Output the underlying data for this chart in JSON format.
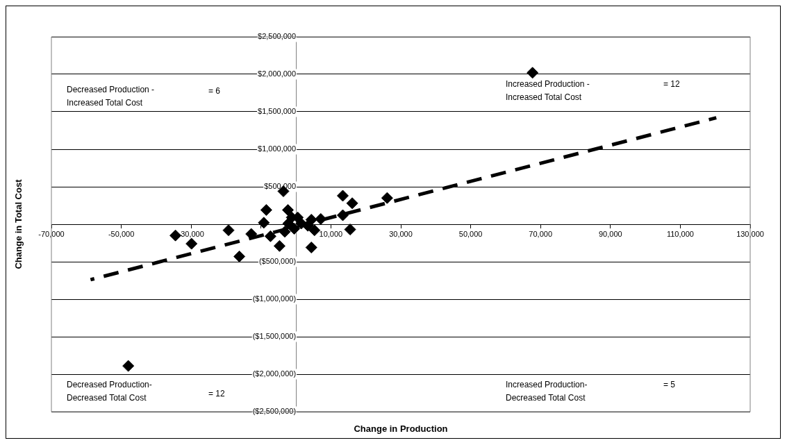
{
  "chart_data": {
    "type": "scatter",
    "xlabel": "Change in Production",
    "ylabel": "Change in Total Cost",
    "series": [
      {
        "color": "#000000",
        "marker": "diamond",
        "x": [
          -48000,
          -34500,
          -29900,
          -19300,
          -16200,
          -12800,
          -8500,
          -9200,
          -7300,
          -4700,
          -3600,
          -2300,
          -1200,
          500,
          -500,
          -3200,
          -2200,
          1500,
          3400,
          4400,
          5300,
          4400,
          7100,
          13400,
          13400,
          16100,
          15500,
          26100,
          67700
        ],
        "values": [
          -1890000,
          -150000,
          -260000,
          -80000,
          -430000,
          -130000,
          190000,
          20000,
          -160000,
          -290000,
          440000,
          190000,
          90000,
          90000,
          -60000,
          -100000,
          10000,
          10000,
          -20000,
          60000,
          -80000,
          -310000,
          70000,
          120000,
          380000,
          280000,
          -70000,
          350000,
          2020000
        ]
      },
      {
        "type": "line",
        "color": "#000000",
        "marker": "none",
        "line_style": "dashed",
        "x": [
          -58800,
          120300
        ],
        "values": [
          -740000,
          1420000
        ]
      }
    ],
    "xlim": [
      -70000,
      130000
    ],
    "xticks": [
      {
        "value": -70000,
        "label": "-70,000"
      },
      {
        "value": -50000,
        "label": "-50,000"
      },
      {
        "value": -30000,
        "label": "-30,000"
      },
      {
        "value": -10000,
        "label": null
      },
      {
        "value": 10000,
        "label": "10,000"
      },
      {
        "value": 30000,
        "label": "30,000"
      },
      {
        "value": 50000,
        "label": "50,000"
      },
      {
        "value": 70000,
        "label": "70,000"
      },
      {
        "value": 90000,
        "label": "90,000"
      },
      {
        "value": 110000,
        "label": "110,000"
      },
      {
        "value": 130000,
        "label": "130,000"
      }
    ],
    "ylim": [
      -2500000,
      2500000
    ],
    "yticks": [
      {
        "value": -2500000,
        "label": "($2,500,000)"
      },
      {
        "value": -2000000,
        "label": "($2,000,000)"
      },
      {
        "value": -1500000,
        "label": "($1,500,000)"
      },
      {
        "value": -1000000,
        "label": "($1,000,000)"
      },
      {
        "value": -500000,
        "label": "($500,000)"
      },
      {
        "value": 0,
        "label": null
      },
      {
        "value": 500000,
        "label": "$500,000"
      },
      {
        "value": 1000000,
        "label": "$1,000,000"
      },
      {
        "value": 1500000,
        "label": "$1,500,000"
      },
      {
        "value": 2000000,
        "label": "$2,000,000"
      },
      {
        "value": 2500000,
        "label": "$2,500,000"
      }
    ],
    "grid": "y",
    "legend": false,
    "annotations": [
      "Decreased Production -\nIncreased Total Cost",
      "= 6",
      "Increased Production -\nIncreased Total Cost",
      "= 12",
      "Decreased Production-\nDecreased Total Cost",
      "= 12",
      "Increased Production-\nDecreased Total Cost",
      "= 5"
    ]
  }
}
